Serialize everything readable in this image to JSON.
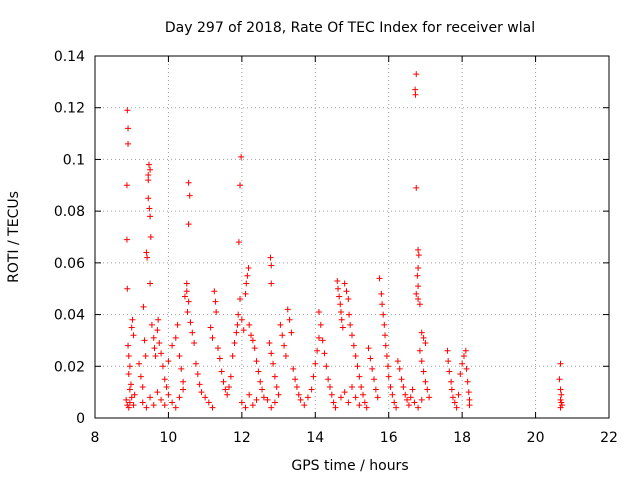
{
  "chart_data": {
    "type": "scatter",
    "title": "Day 297 of 2018, Rate Of TEC Index for receiver wlal",
    "xlabel": "GPS time / hours",
    "ylabel": "ROTI / TECUs",
    "xlim": [
      8,
      22
    ],
    "ylim": [
      0,
      0.14
    ],
    "x_ticks": [
      8,
      10,
      12,
      14,
      16,
      18,
      20,
      22
    ],
    "y_ticks": [
      0,
      0.02,
      0.04,
      0.06,
      0.08,
      0.1,
      0.12,
      0.14
    ],
    "x_tick_labels": [
      "8",
      "10",
      "12",
      "14",
      "16",
      "18",
      "20",
      "22"
    ],
    "y_tick_labels": [
      "0",
      "0.02",
      "0.04",
      "0.06",
      "0.08",
      "0.1",
      "0.12",
      "0.14"
    ],
    "grid": true,
    "marker": "+",
    "color": "#ff0000",
    "series": [
      {
        "name": "ROTI",
        "points": [
          [
            8.88,
            0.119
          ],
          [
            8.9,
            0.112
          ],
          [
            8.9,
            0.106
          ],
          [
            8.87,
            0.09
          ],
          [
            8.87,
            0.069
          ],
          [
            8.88,
            0.05
          ],
          [
            8.9,
            0.028
          ],
          [
            8.92,
            0.024
          ],
          [
            8.95,
            0.02
          ],
          [
            8.92,
            0.017
          ],
          [
            8.98,
            0.013
          ],
          [
            8.95,
            0.011
          ],
          [
            9.02,
            0.038
          ],
          [
            9.0,
            0.035
          ],
          [
            9.05,
            0.032
          ],
          [
            8.85,
            0.007
          ],
          [
            8.88,
            0.005
          ],
          [
            8.92,
            0.004
          ],
          [
            8.95,
            0.006
          ],
          [
            9.0,
            0.008
          ],
          [
            9.05,
            0.005
          ],
          [
            9.08,
            0.009
          ],
          [
            9.2,
            0.021
          ],
          [
            9.25,
            0.016
          ],
          [
            9.3,
            0.012
          ],
          [
            9.32,
            0.043
          ],
          [
            9.35,
            0.03
          ],
          [
            9.38,
            0.024
          ],
          [
            9.4,
            0.064
          ],
          [
            9.42,
            0.062
          ],
          [
            9.45,
            0.094
          ],
          [
            9.45,
            0.092
          ],
          [
            9.47,
            0.098
          ],
          [
            9.45,
            0.085
          ],
          [
            9.48,
            0.081
          ],
          [
            9.5,
            0.078
          ],
          [
            9.52,
            0.07
          ],
          [
            9.5,
            0.052
          ],
          [
            9.5,
            0.096
          ],
          [
            9.55,
            0.036
          ],
          [
            9.6,
            0.031
          ],
          [
            9.62,
            0.027
          ],
          [
            9.65,
            0.024
          ],
          [
            9.7,
            0.034
          ],
          [
            9.72,
            0.038
          ],
          [
            9.75,
            0.029
          ],
          [
            9.8,
            0.025
          ],
          [
            9.85,
            0.02
          ],
          [
            9.9,
            0.015
          ],
          [
            9.95,
            0.012
          ],
          [
            9.3,
            0.006
          ],
          [
            9.4,
            0.004
          ],
          [
            9.5,
            0.008
          ],
          [
            9.6,
            0.005
          ],
          [
            9.7,
            0.01
          ],
          [
            9.8,
            0.007
          ],
          [
            9.9,
            0.005
          ],
          [
            10.0,
            0.009
          ],
          [
            10.1,
            0.006
          ],
          [
            10.2,
            0.004
          ],
          [
            10.3,
            0.008
          ],
          [
            10.4,
            0.011
          ],
          [
            10.0,
            0.022
          ],
          [
            10.1,
            0.028
          ],
          [
            10.2,
            0.031
          ],
          [
            10.25,
            0.036
          ],
          [
            10.3,
            0.024
          ],
          [
            10.35,
            0.019
          ],
          [
            10.4,
            0.014
          ],
          [
            10.45,
            0.047
          ],
          [
            10.5,
            0.052
          ],
          [
            10.5,
            0.049
          ],
          [
            10.55,
            0.045
          ],
          [
            10.52,
            0.041
          ],
          [
            10.55,
            0.091
          ],
          [
            10.58,
            0.086
          ],
          [
            10.55,
            0.075
          ],
          [
            10.6,
            0.037
          ],
          [
            10.65,
            0.033
          ],
          [
            10.7,
            0.029
          ],
          [
            10.75,
            0.021
          ],
          [
            10.8,
            0.017
          ],
          [
            10.85,
            0.013
          ],
          [
            10.9,
            0.01
          ],
          [
            11.0,
            0.008
          ],
          [
            11.1,
            0.006
          ],
          [
            11.2,
            0.004
          ],
          [
            11.15,
            0.035
          ],
          [
            11.2,
            0.031
          ],
          [
            11.25,
            0.049
          ],
          [
            11.28,
            0.045
          ],
          [
            11.3,
            0.041
          ],
          [
            11.35,
            0.027
          ],
          [
            11.4,
            0.023
          ],
          [
            11.45,
            0.018
          ],
          [
            11.5,
            0.014
          ],
          [
            11.55,
            0.011
          ],
          [
            11.6,
            0.009
          ],
          [
            11.65,
            0.012
          ],
          [
            11.7,
            0.016
          ],
          [
            11.75,
            0.024
          ],
          [
            11.8,
            0.029
          ],
          [
            11.85,
            0.033
          ],
          [
            11.88,
            0.036
          ],
          [
            11.9,
            0.04
          ],
          [
            11.95,
            0.046
          ],
          [
            11.92,
            0.068
          ],
          [
            11.95,
            0.09
          ],
          [
            11.98,
            0.101
          ],
          [
            12.0,
            0.038
          ],
          [
            12.05,
            0.034
          ],
          [
            12.1,
            0.048
          ],
          [
            12.12,
            0.052
          ],
          [
            12.15,
            0.055
          ],
          [
            12.18,
            0.058
          ],
          [
            12.2,
            0.036
          ],
          [
            12.25,
            0.032
          ],
          [
            12.3,
            0.03
          ],
          [
            12.35,
            0.027
          ],
          [
            12.4,
            0.022
          ],
          [
            12.45,
            0.018
          ],
          [
            12.5,
            0.014
          ],
          [
            12.55,
            0.011
          ],
          [
            12.6,
            0.008
          ],
          [
            12.0,
            0.006
          ],
          [
            12.1,
            0.004
          ],
          [
            12.2,
            0.009
          ],
          [
            12.3,
            0.005
          ],
          [
            12.4,
            0.007
          ],
          [
            12.78,
            0.062
          ],
          [
            12.8,
            0.059
          ],
          [
            12.8,
            0.052
          ],
          [
            12.75,
            0.029
          ],
          [
            12.8,
            0.025
          ],
          [
            12.85,
            0.021
          ],
          [
            12.9,
            0.016
          ],
          [
            12.95,
            0.012
          ],
          [
            13.0,
            0.009
          ],
          [
            12.7,
            0.007
          ],
          [
            12.8,
            0.004
          ],
          [
            12.9,
            0.006
          ],
          [
            13.05,
            0.036
          ],
          [
            13.1,
            0.032
          ],
          [
            13.15,
            0.028
          ],
          [
            13.2,
            0.024
          ],
          [
            13.25,
            0.042
          ],
          [
            13.3,
            0.038
          ],
          [
            13.35,
            0.033
          ],
          [
            13.4,
            0.019
          ],
          [
            13.45,
            0.015
          ],
          [
            13.5,
            0.012
          ],
          [
            13.55,
            0.009
          ],
          [
            13.6,
            0.007
          ],
          [
            13.7,
            0.005
          ],
          [
            13.8,
            0.008
          ],
          [
            13.9,
            0.011
          ],
          [
            13.95,
            0.016
          ],
          [
            14.0,
            0.021
          ],
          [
            14.05,
            0.026
          ],
          [
            14.1,
            0.031
          ],
          [
            14.15,
            0.036
          ],
          [
            14.1,
            0.041
          ],
          [
            14.2,
            0.03
          ],
          [
            14.25,
            0.025
          ],
          [
            14.3,
            0.02
          ],
          [
            14.35,
            0.015
          ],
          [
            14.4,
            0.012
          ],
          [
            14.45,
            0.009
          ],
          [
            14.5,
            0.006
          ],
          [
            14.55,
            0.004
          ],
          [
            14.6,
            0.053
          ],
          [
            14.62,
            0.05
          ],
          [
            14.65,
            0.047
          ],
          [
            14.68,
            0.044
          ],
          [
            14.7,
            0.041
          ],
          [
            14.72,
            0.038
          ],
          [
            14.75,
            0.035
          ],
          [
            14.8,
            0.052
          ],
          [
            14.85,
            0.049
          ],
          [
            14.9,
            0.046
          ],
          [
            14.92,
            0.04
          ],
          [
            14.95,
            0.036
          ],
          [
            15.0,
            0.032
          ],
          [
            15.05,
            0.028
          ],
          [
            15.1,
            0.024
          ],
          [
            15.15,
            0.02
          ],
          [
            15.2,
            0.016
          ],
          [
            15.25,
            0.012
          ],
          [
            15.3,
            0.009
          ],
          [
            15.35,
            0.006
          ],
          [
            15.4,
            0.004
          ],
          [
            14.7,
            0.008
          ],
          [
            14.8,
            0.01
          ],
          [
            14.9,
            0.006
          ],
          [
            15.0,
            0.012
          ],
          [
            15.1,
            0.008
          ],
          [
            15.2,
            0.005
          ],
          [
            15.45,
            0.027
          ],
          [
            15.5,
            0.023
          ],
          [
            15.55,
            0.019
          ],
          [
            15.6,
            0.015
          ],
          [
            15.65,
            0.011
          ],
          [
            15.7,
            0.008
          ],
          [
            15.75,
            0.054
          ],
          [
            15.8,
            0.048
          ],
          [
            15.82,
            0.044
          ],
          [
            15.85,
            0.04
          ],
          [
            15.88,
            0.036
          ],
          [
            15.9,
            0.032
          ],
          [
            15.92,
            0.028
          ],
          [
            15.95,
            0.024
          ],
          [
            15.98,
            0.02
          ],
          [
            16.0,
            0.016
          ],
          [
            16.05,
            0.012
          ],
          [
            16.1,
            0.009
          ],
          [
            16.15,
            0.006
          ],
          [
            16.2,
            0.004
          ],
          [
            16.25,
            0.022
          ],
          [
            16.3,
            0.019
          ],
          [
            16.35,
            0.015
          ],
          [
            16.4,
            0.012
          ],
          [
            16.45,
            0.009
          ],
          [
            16.5,
            0.007
          ],
          [
            16.55,
            0.005
          ],
          [
            16.6,
            0.008
          ],
          [
            16.65,
            0.011
          ],
          [
            16.75,
            0.133
          ],
          [
            16.72,
            0.127
          ],
          [
            16.73,
            0.125
          ],
          [
            16.75,
            0.089
          ],
          [
            16.8,
            0.065
          ],
          [
            16.82,
            0.063
          ],
          [
            16.8,
            0.058
          ],
          [
            16.78,
            0.055
          ],
          [
            16.8,
            0.051
          ],
          [
            16.75,
            0.048
          ],
          [
            16.8,
            0.046
          ],
          [
            16.85,
            0.044
          ],
          [
            16.9,
            0.033
          ],
          [
            16.95,
            0.031
          ],
          [
            17.0,
            0.029
          ],
          [
            16.85,
            0.026
          ],
          [
            16.9,
            0.022
          ],
          [
            16.95,
            0.018
          ],
          [
            17.0,
            0.014
          ],
          [
            17.05,
            0.011
          ],
          [
            17.1,
            0.008
          ],
          [
            16.7,
            0.006
          ],
          [
            16.8,
            0.004
          ],
          [
            16.9,
            0.007
          ],
          [
            17.6,
            0.026
          ],
          [
            17.62,
            0.022
          ],
          [
            17.65,
            0.018
          ],
          [
            17.7,
            0.014
          ],
          [
            17.72,
            0.011
          ],
          [
            17.75,
            0.008
          ],
          [
            17.8,
            0.006
          ],
          [
            17.85,
            0.004
          ],
          [
            17.9,
            0.009
          ],
          [
            17.95,
            0.017
          ],
          [
            18.0,
            0.021
          ],
          [
            18.05,
            0.024
          ],
          [
            18.1,
            0.026
          ],
          [
            18.12,
            0.019
          ],
          [
            18.15,
            0.014
          ],
          [
            18.18,
            0.01
          ],
          [
            18.2,
            0.007
          ],
          [
            18.2,
            0.005
          ],
          [
            20.68,
            0.021
          ],
          [
            20.65,
            0.015
          ],
          [
            20.68,
            0.011
          ],
          [
            20.7,
            0.009
          ],
          [
            20.68,
            0.007
          ],
          [
            20.7,
            0.006
          ],
          [
            20.72,
            0.005
          ],
          [
            20.68,
            0.004
          ]
        ]
      }
    ]
  }
}
